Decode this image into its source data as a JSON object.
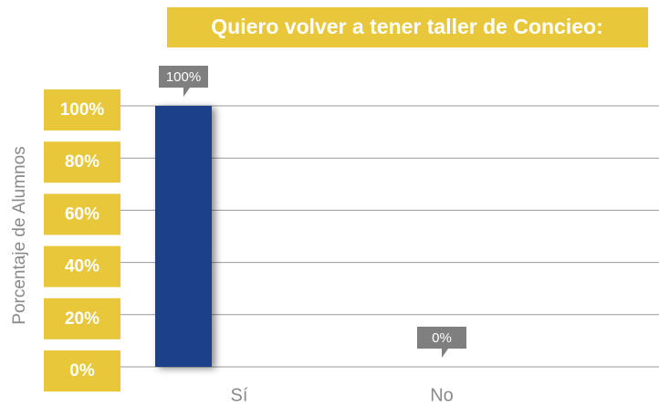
{
  "chart_data": {
    "type": "bar",
    "title": "Quiero volver a tener taller de Concieo:",
    "y_label": "Porcentaje de Alumnos",
    "categories": [
      "Sí",
      "No"
    ],
    "values": [
      100,
      0
    ],
    "value_labels": [
      "100%",
      "0%"
    ],
    "color": "#1f3f8a",
    "ylim": [
      0,
      100
    ],
    "yticks": [
      {
        "value": 0,
        "label": "0%"
      },
      {
        "value": 20,
        "label": "20%"
      },
      {
        "value": 40,
        "label": "40%"
      },
      {
        "value": 60,
        "label": "60%"
      },
      {
        "value": 80,
        "label": "80%"
      },
      {
        "value": 100,
        "label": "100%"
      }
    ],
    "grid": true
  }
}
